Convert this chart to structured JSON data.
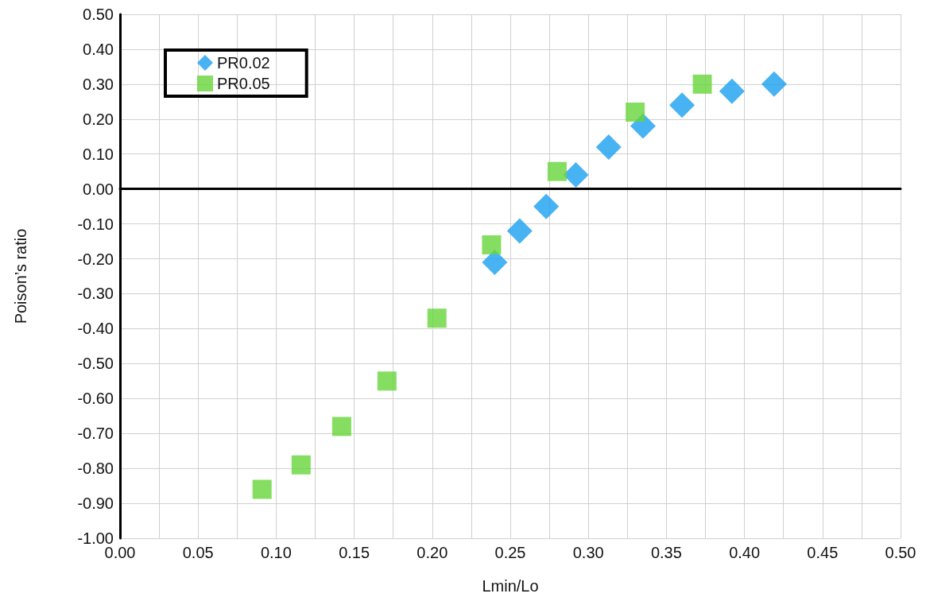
{
  "chart_data": {
    "type": "scatter",
    "xlabel": "Lmin/Lo",
    "ylabel": "Poison’s ratio",
    "xlim": [
      0,
      0.5
    ],
    "xticks": [
      {
        "value": 0,
        "label": "0.00"
      },
      {
        "value": 0.025,
        "label": null
      },
      {
        "value": 0.05,
        "label": "0.05"
      },
      {
        "value": 0.075,
        "label": null
      },
      {
        "value": 0.1,
        "label": "0.10"
      },
      {
        "value": 0.125,
        "label": null
      },
      {
        "value": 0.15,
        "label": "0.15"
      },
      {
        "value": 0.175,
        "label": null
      },
      {
        "value": 0.2,
        "label": "0.20"
      },
      {
        "value": 0.225,
        "label": null
      },
      {
        "value": 0.25,
        "label": "0.25"
      },
      {
        "value": 0.275,
        "label": null
      },
      {
        "value": 0.3,
        "label": "0.30"
      },
      {
        "value": 0.325,
        "label": null
      },
      {
        "value": 0.35,
        "label": "0.35"
      },
      {
        "value": 0.375,
        "label": null
      },
      {
        "value": 0.4,
        "label": "0.40"
      },
      {
        "value": 0.425,
        "label": null
      },
      {
        "value": 0.45,
        "label": "0.45"
      },
      {
        "value": 0.475,
        "label": null
      },
      {
        "value": 0.5,
        "label": "0.50"
      }
    ],
    "ylim": [
      -1,
      0.5
    ],
    "yticks": [
      {
        "value": -1,
        "label": "-1.00"
      },
      {
        "value": -0.9,
        "label": "-0.90"
      },
      {
        "value": -0.8,
        "label": "-0.80"
      },
      {
        "value": -0.7,
        "label": "-0.70"
      },
      {
        "value": -0.6,
        "label": "-0.60"
      },
      {
        "value": -0.5,
        "label": "-0.50"
      },
      {
        "value": -0.4,
        "label": "-0.40"
      },
      {
        "value": -0.3,
        "label": "-0.30"
      },
      {
        "value": -0.2,
        "label": "-0.20"
      },
      {
        "value": -0.1,
        "label": "-0.10"
      },
      {
        "value": 0,
        "label": "0.00"
      },
      {
        "value": 0.1,
        "label": "0.10"
      },
      {
        "value": 0.2,
        "label": "0.20"
      },
      {
        "value": 0.3,
        "label": "0.30"
      },
      {
        "value": 0.4,
        "label": "0.40"
      },
      {
        "value": 0.5,
        "label": "0.50"
      }
    ],
    "grid": true,
    "legend": "top left",
    "series": [
      {
        "name": "PR0.02",
        "color": "#1aa0f0",
        "marker": "diamond",
        "x": [
          0.24,
          0.256,
          0.273,
          0.292,
          0.313,
          0.335,
          0.36,
          0.392,
          0.419
        ],
        "values": [
          -0.21,
          -0.12,
          -0.05,
          0.04,
          0.12,
          0.18,
          0.24,
          0.28,
          0.3
        ]
      },
      {
        "name": "PR0.05",
        "color": "#66d63a",
        "marker": "square",
        "x": [
          0.091,
          0.116,
          0.142,
          0.171,
          0.203,
          0.238,
          0.28,
          0.33,
          0.373
        ],
        "values": [
          -0.86,
          -0.79,
          -0.68,
          -0.55,
          -0.37,
          -0.16,
          0.05,
          0.22,
          0.3
        ]
      }
    ]
  }
}
